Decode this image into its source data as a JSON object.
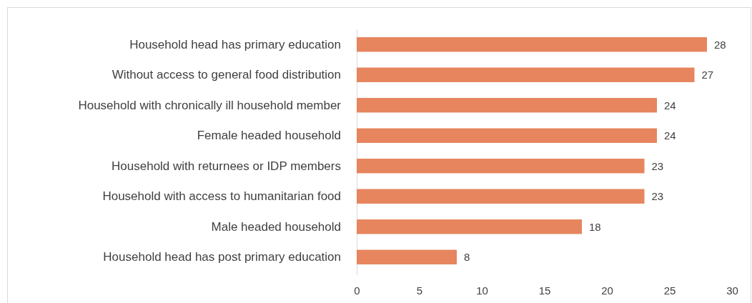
{
  "chart_data": {
    "type": "bar",
    "orientation": "horizontal",
    "categories": [
      "Household head has primary education",
      "Without access to general food distribution",
      "Household with chronically ill household member",
      "Female headed household",
      "Household with returnees or IDP members",
      "Household with access to humanitarian food",
      "Male headed household",
      "Household head has post primary education"
    ],
    "values": [
      28,
      27,
      24,
      24,
      23,
      23,
      18,
      8
    ],
    "color": "#e6855e",
    "xlim": [
      0,
      30
    ],
    "xticks": [
      0,
      5,
      10,
      15,
      20,
      25,
      30
    ],
    "data_labels": true
  }
}
